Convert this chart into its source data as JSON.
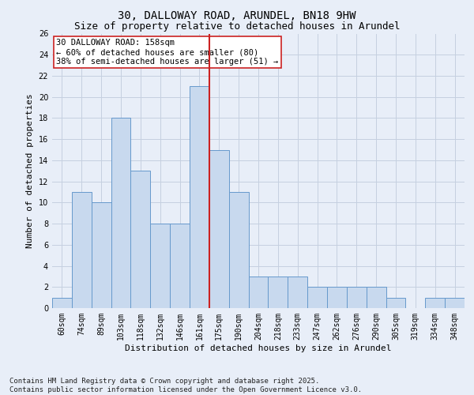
{
  "title1": "30, DALLOWAY ROAD, ARUNDEL, BN18 9HW",
  "title2": "Size of property relative to detached houses in Arundel",
  "xlabel": "Distribution of detached houses by size in Arundel",
  "ylabel": "Number of detached properties",
  "categories": [
    "60sqm",
    "74sqm",
    "89sqm",
    "103sqm",
    "118sqm",
    "132sqm",
    "146sqm",
    "161sqm",
    "175sqm",
    "190sqm",
    "204sqm",
    "218sqm",
    "233sqm",
    "247sqm",
    "262sqm",
    "276sqm",
    "290sqm",
    "305sqm",
    "319sqm",
    "334sqm",
    "348sqm"
  ],
  "values": [
    1,
    11,
    10,
    18,
    13,
    8,
    8,
    21,
    15,
    11,
    3,
    3,
    3,
    2,
    2,
    2,
    2,
    1,
    0,
    1,
    1
  ],
  "bar_color": "#c8d9ee",
  "bar_edge_color": "#6699cc",
  "grid_color": "#c5d0e0",
  "bg_color": "#e8eef8",
  "vline_color": "#cc2222",
  "vline_x_idx": 7,
  "annotation_text": "30 DALLOWAY ROAD: 158sqm\n← 60% of detached houses are smaller (80)\n38% of semi-detached houses are larger (51) →",
  "annotation_box_color": "#ffffff",
  "annotation_box_edge": "#cc2222",
  "ylim": [
    0,
    26
  ],
  "yticks": [
    0,
    2,
    4,
    6,
    8,
    10,
    12,
    14,
    16,
    18,
    20,
    22,
    24,
    26
  ],
  "footer": "Contains HM Land Registry data © Crown copyright and database right 2025.\nContains public sector information licensed under the Open Government Licence v3.0.",
  "title_fontsize": 10,
  "subtitle_fontsize": 9,
  "axis_label_fontsize": 8,
  "tick_fontsize": 7,
  "annotation_fontsize": 7.5,
  "footer_fontsize": 6.5
}
